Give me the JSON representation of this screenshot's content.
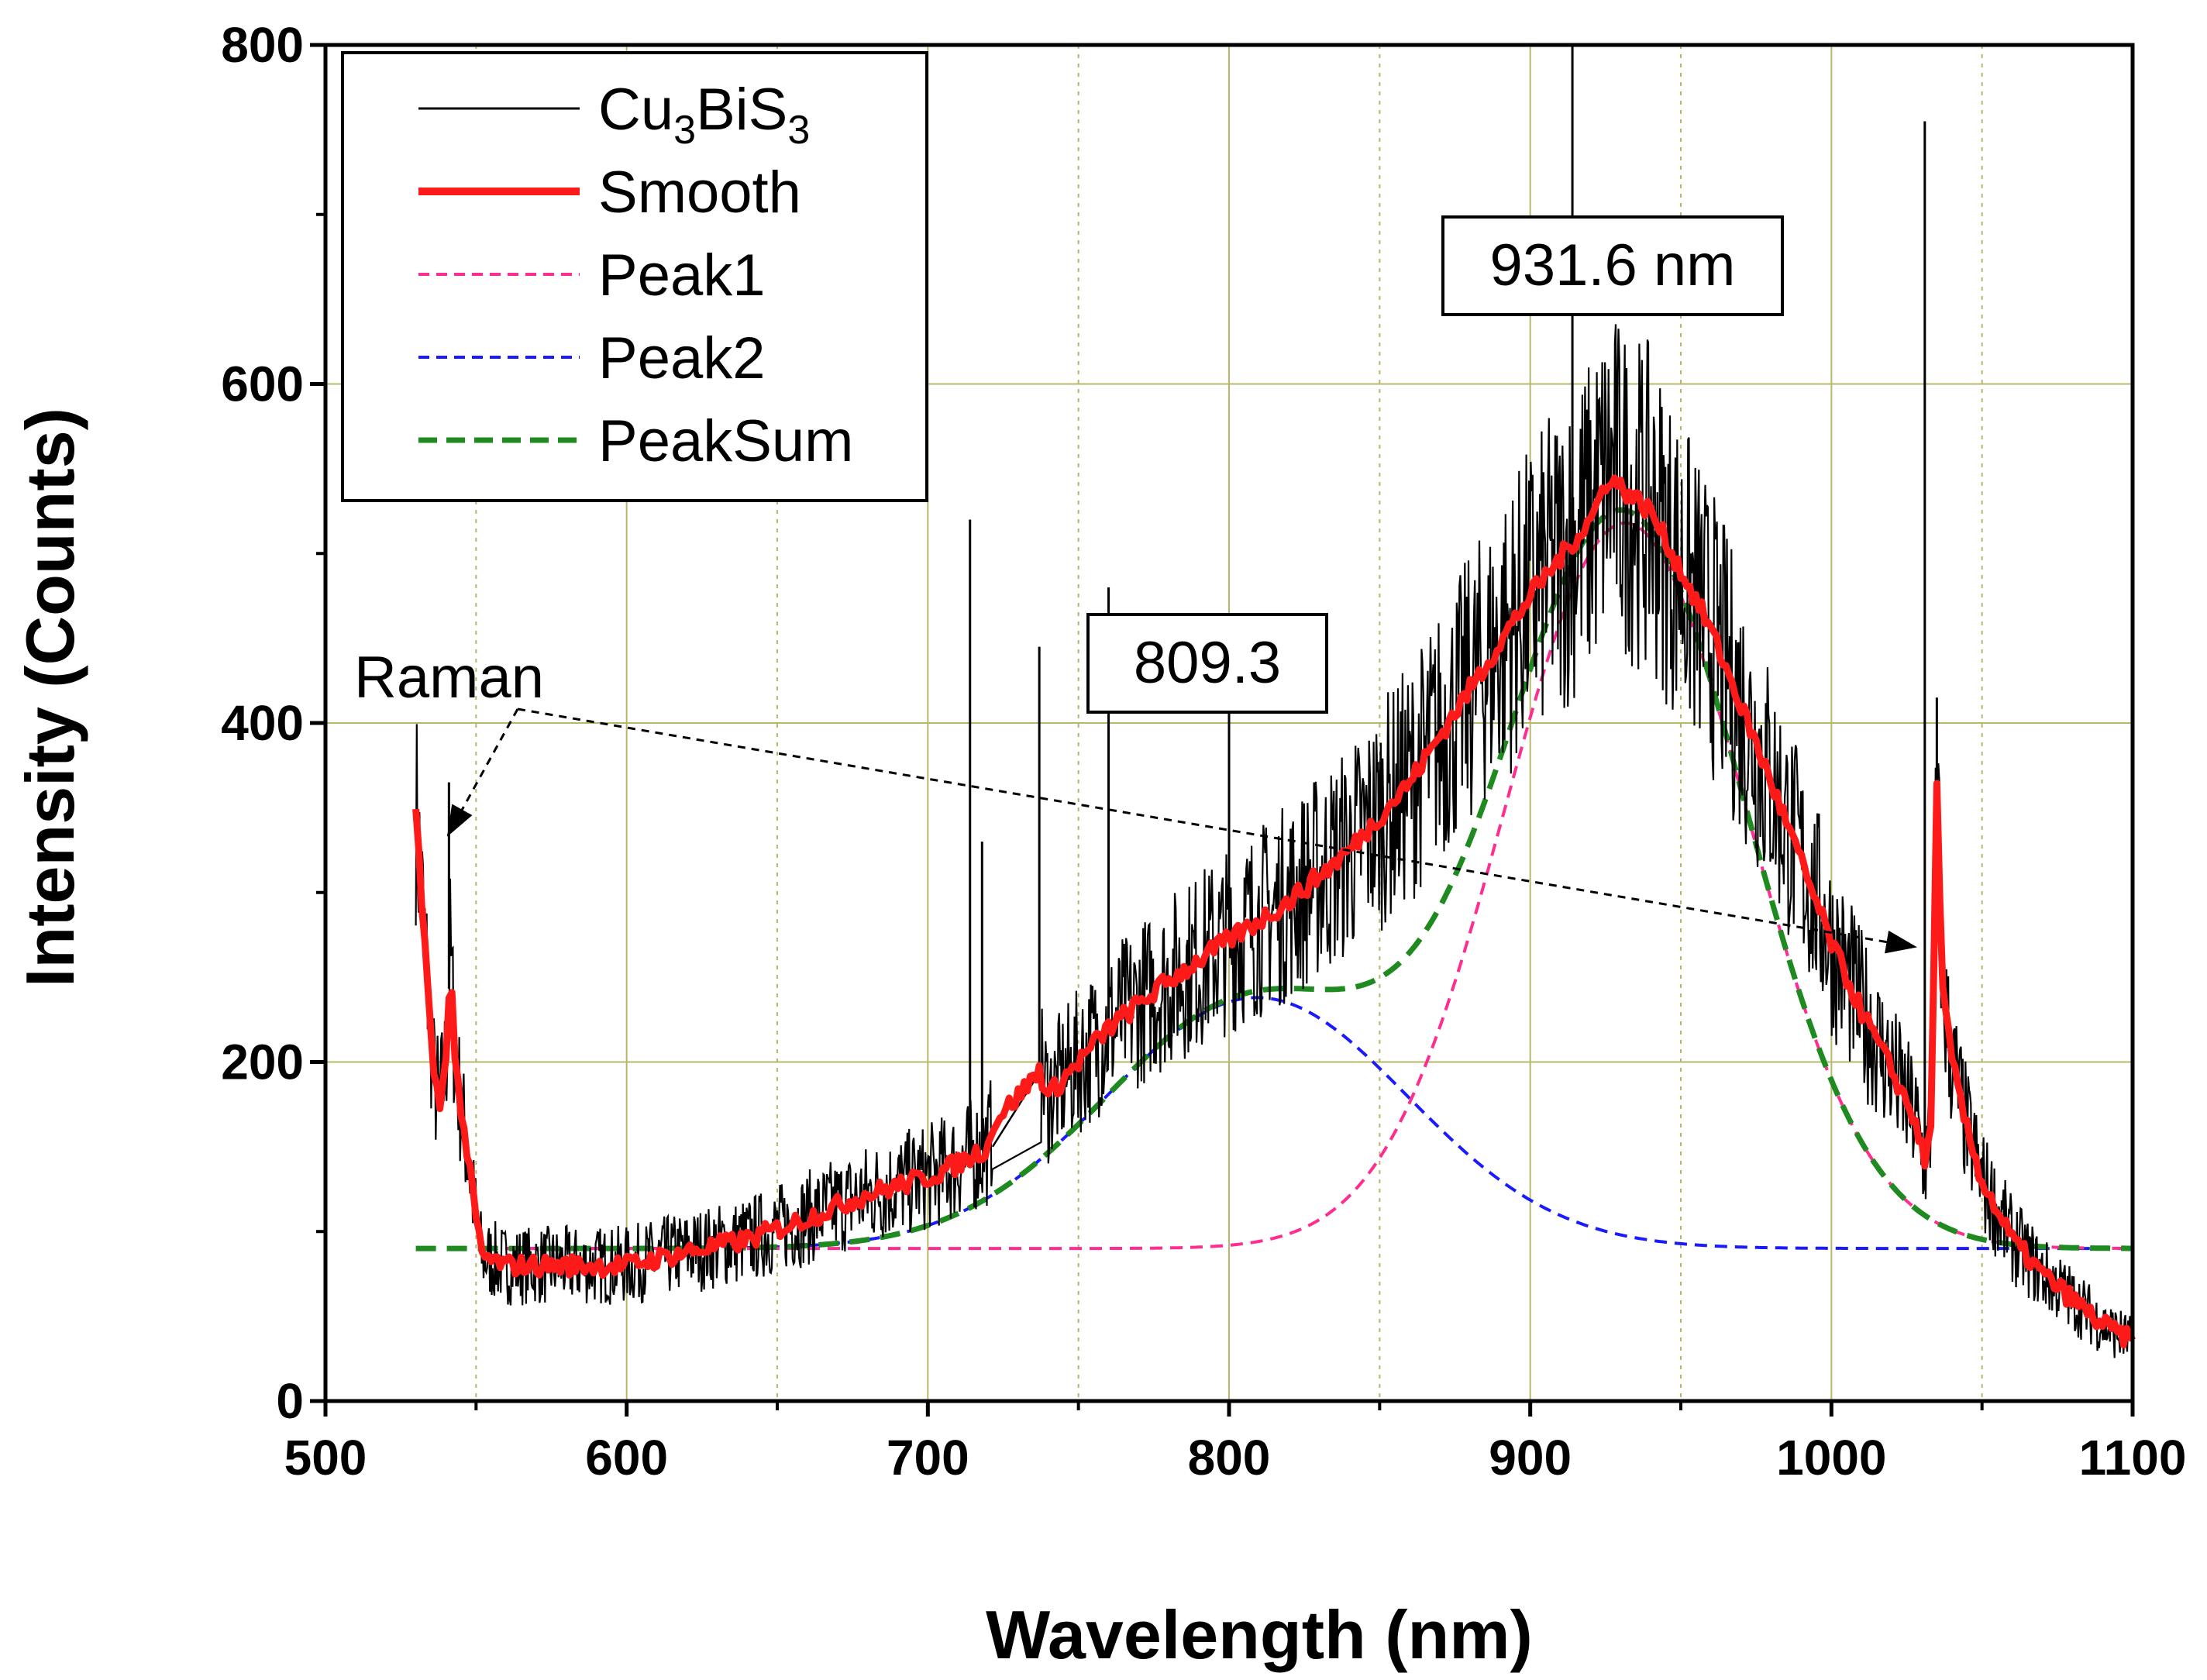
{
  "chart_data": {
    "type": "line",
    "title": "",
    "xlabel": "Wavelength (nm)",
    "ylabel": "Intensity (Counts)",
    "xlim": [
      500,
      1100
    ],
    "ylim": [
      0,
      800
    ],
    "x_ticks": [
      500,
      600,
      700,
      800,
      900,
      1000,
      1100
    ],
    "x_tick_labels": [
      "500",
      "600",
      "700",
      "800",
      "900",
      "1000",
      "1100"
    ],
    "y_ticks": [
      0,
      200,
      400,
      600,
      800
    ],
    "y_tick_labels": [
      "0",
      "200",
      "400",
      "600",
      "800"
    ],
    "x_minor_grid": [
      550,
      650,
      750,
      850,
      950,
      1050
    ],
    "grid": true,
    "colors": {
      "raw": "#000000",
      "smooth": "#ff1a1a",
      "peak1": "#ff2d8f",
      "peak2": "#1a1aff",
      "peaksum": "#1f8a1f",
      "grid": "#b8b86a"
    },
    "legend": {
      "position": "top-left",
      "entries": [
        {
          "key": "raw",
          "label_main": "Cu",
          "sub1": "3",
          "mid": "BiS",
          "sub2": "3"
        },
        {
          "key": "smooth",
          "label": "Smooth"
        },
        {
          "key": "peak1",
          "label": "Peak1"
        },
        {
          "key": "peak2",
          "label": "Peak2"
        },
        {
          "key": "peaksum",
          "label": "PeakSum"
        }
      ]
    },
    "annotations": {
      "peak_main": "931.6 nm",
      "peak_secondary": "809.3",
      "raman": "Raman"
    },
    "fit": {
      "baseline": 90,
      "peak1": {
        "center": 931.6,
        "amplitude": 428,
        "sigma": 40
      },
      "peak2": {
        "center": 809.3,
        "amplitude": 148,
        "sigma": 50
      }
    },
    "series": [
      {
        "name": "Cu3BiS3",
        "x": [
          530,
          533,
          536,
          538,
          540,
          541.5,
          543,
          546,
          549,
          552,
          560,
          580,
          600,
          620,
          640,
          660,
          680,
          700,
          710,
          720,
          722,
          730,
          737,
          740,
          750,
          760,
          780,
          800,
          820,
          840,
          860,
          880,
          900,
          920,
          926,
          940,
          960,
          980,
          1000,
          1010,
          1020,
          1028,
          1031,
          1033,
          1035,
          1037,
          1040,
          1045,
          1050,
          1060,
          1070,
          1080,
          1090,
          1100
        ],
        "y": [
          350,
          270,
          190,
          175,
          200,
          265,
          200,
          160,
          120,
          85,
          80,
          80,
          80,
          88,
          95,
          108,
          122,
          132,
          140,
          150,
          165,
          180,
          195,
          180,
          200,
          220,
          248,
          272,
          295,
          325,
          365,
          420,
          475,
          520,
          545,
          525,
          455,
          365,
          270,
          230,
          195,
          165,
          140,
          160,
          360,
          240,
          200,
          160,
          130,
          95,
          75,
          60,
          45,
          35
        ]
      },
      {
        "name": "Smooth",
        "x": [
          530,
          533,
          536,
          538,
          540,
          541.5,
          543,
          546,
          549,
          552,
          560,
          580,
          600,
          620,
          640,
          660,
          680,
          700,
          710,
          720,
          722,
          730,
          737,
          740,
          750,
          760,
          780,
          800,
          820,
          840,
          860,
          880,
          900,
          920,
          926,
          940,
          960,
          980,
          1000,
          1010,
          1020,
          1028,
          1031,
          1033,
          1035,
          1037,
          1040,
          1045,
          1050,
          1060,
          1070,
          1080,
          1090,
          1100
        ],
        "y": [
          350,
          270,
          190,
          175,
          200,
          265,
          200,
          160,
          120,
          85,
          80,
          80,
          80,
          88,
          95,
          108,
          122,
          132,
          140,
          150,
          165,
          180,
          195,
          180,
          200,
          220,
          248,
          272,
          295,
          325,
          365,
          420,
          475,
          520,
          545,
          525,
          455,
          365,
          270,
          230,
          195,
          165,
          140,
          160,
          360,
          240,
          200,
          160,
          130,
          95,
          75,
          60,
          45,
          35
        ]
      }
    ]
  }
}
